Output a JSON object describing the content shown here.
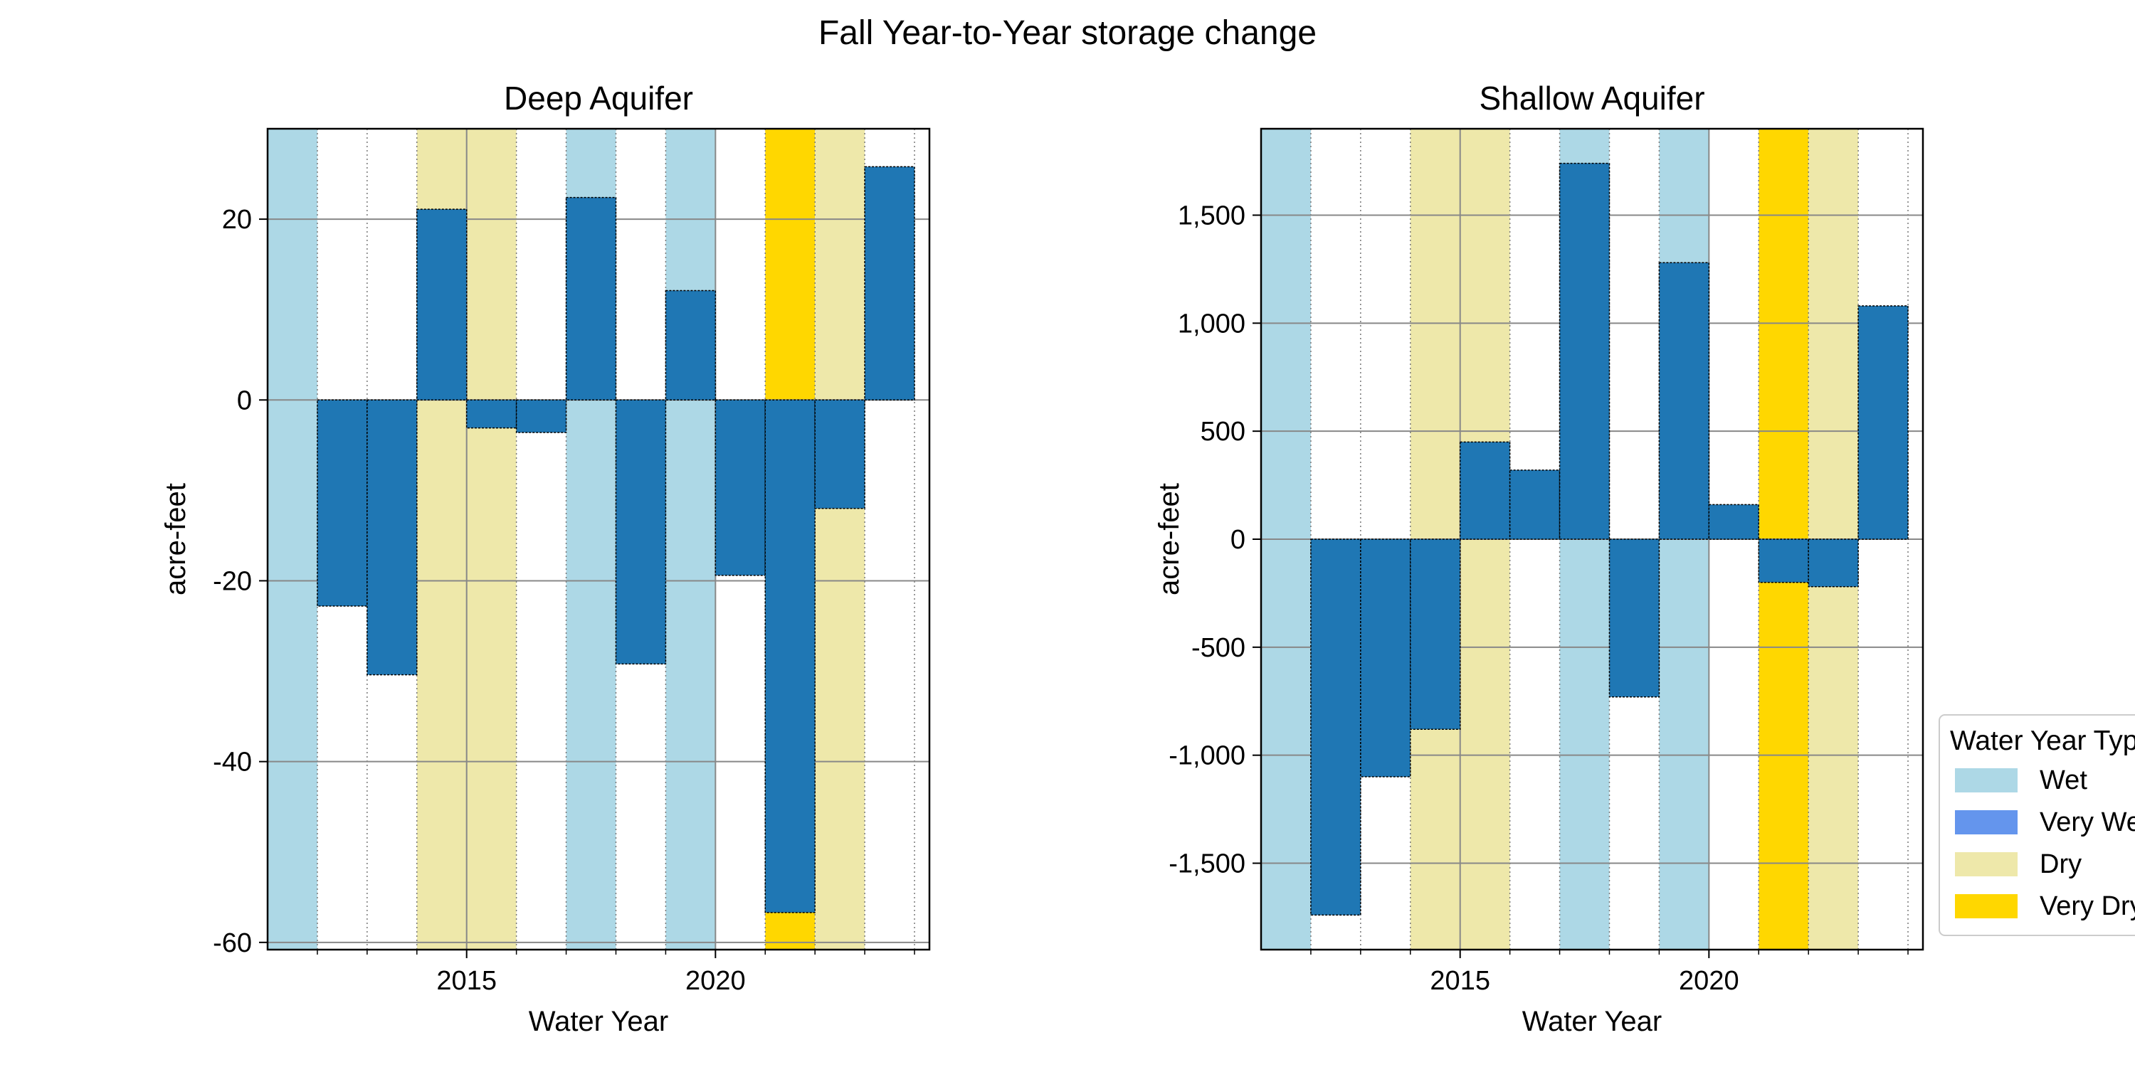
{
  "chart_data": {
    "type": "bar",
    "title": "Fall Year-to-Year storage change",
    "xlabel": "Water Year",
    "ylabel": "acre-feet",
    "grid": true,
    "x_ticks": [
      2015,
      2020
    ],
    "legend": {
      "title": "Water Year Type",
      "placement": "lower right, outside axes",
      "entries": [
        {
          "label": "Wet",
          "color": "#ADD8E6"
        },
        {
          "label": "Very Wet",
          "color": "#6495ED"
        },
        {
          "label": "Dry",
          "color": "#EEE8AA"
        },
        {
          "label": "Very Dry",
          "color": "#FFD700"
        }
      ]
    },
    "bar_color": "#1F77B4",
    "water_year_types": [
      {
        "start": 2011,
        "end": 2012,
        "type": "Wet"
      },
      {
        "start": 2014,
        "end": 2016,
        "type": "Dry"
      },
      {
        "start": 2017,
        "end": 2018,
        "type": "Wet"
      },
      {
        "start": 2019,
        "end": 2020,
        "type": "Wet"
      },
      {
        "start": 2021,
        "end": 2022,
        "type": "Very Dry"
      },
      {
        "start": 2022,
        "end": 2023,
        "type": "Dry"
      }
    ],
    "panels": [
      {
        "title": "Deep Aquifer",
        "ylim": [
          -60.8,
          30
        ],
        "y_ticks": [
          20,
          0,
          -20,
          -40,
          -60
        ],
        "y_tick_labels": [
          "20",
          "0",
          "-20",
          "-40",
          "-60"
        ],
        "x": [
          2012,
          2013,
          2014,
          2015,
          2016,
          2017,
          2018,
          2019,
          2020,
          2021,
          2022,
          2023
        ],
        "values": [
          -22.8,
          -30.4,
          21.1,
          -3.1,
          -3.6,
          22.4,
          -29.2,
          12.1,
          -19.4,
          -56.7,
          -12.0,
          25.8
        ]
      },
      {
        "title": "Shallow  Aquifer",
        "ylim": [
          -1900,
          1900
        ],
        "y_ticks": [
          1500,
          1000,
          500,
          0,
          -500,
          -1000,
          -1500
        ],
        "y_tick_labels": [
          "1,500",
          "1,000",
          "500",
          "0",
          "-500",
          "-1,000",
          "-1,500"
        ],
        "x": [
          2012,
          2013,
          2014,
          2015,
          2016,
          2017,
          2018,
          2019,
          2020,
          2021,
          2022,
          2023
        ],
        "values": [
          -1740,
          -1100,
          -880,
          450,
          320,
          1740,
          -730,
          1280,
          160,
          -200,
          -220,
          1080
        ]
      }
    ]
  }
}
